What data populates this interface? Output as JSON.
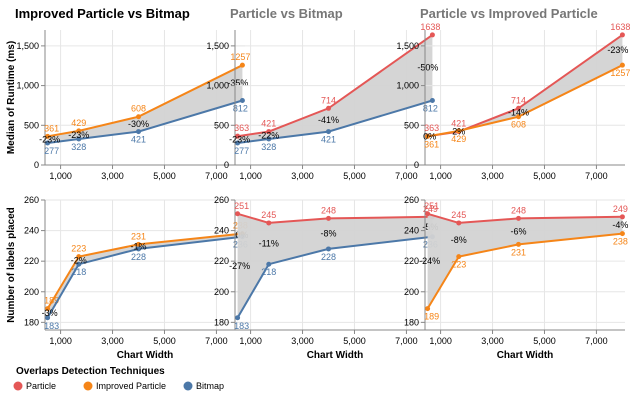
{
  "colors": {
    "Particle": "#e45756",
    "Improved Particle": "#f58518",
    "Bitmap": "#4c78a8",
    "gap_fill": "#d3d3d3",
    "axis": "#888888",
    "grid": "#e6e6e6"
  },
  "legend": {
    "title": "Overlaps Detection Techniques",
    "items": [
      "Particle",
      "Improved Particle",
      "Bitmap"
    ]
  },
  "chart_data": [
    {
      "type": "line",
      "title": "Improved Particle vs Bitmap",
      "ylabel": "Median of Runtime (ms)",
      "xlabel": "",
      "x": [
        500,
        1700,
        4000,
        8000
      ],
      "xlim": [
        400,
        8100
      ],
      "ylim": [
        0,
        1700
      ],
      "xticks": [
        "1,000",
        "3,000",
        "5,000",
        "7,000"
      ],
      "yticks": [
        "0",
        "500",
        "1,000",
        "1,500"
      ],
      "series": [
        {
          "name": "Improved Particle",
          "values": [
            361,
            429,
            608,
            1257
          ],
          "labels": [
            "361",
            "429",
            "608",
            "1257"
          ]
        },
        {
          "name": "Bitmap",
          "values": [
            277,
            328,
            421,
            812
          ],
          "labels": [
            "277",
            "328",
            "421",
            "812"
          ]
        }
      ],
      "gap": [
        "-23%",
        "-23%",
        "-30%",
        "-35%"
      ]
    },
    {
      "type": "line",
      "title": "Particle vs Bitmap",
      "ylabel": "",
      "xlabel": "",
      "x": [
        500,
        1700,
        4000,
        8000
      ],
      "xlim": [
        400,
        8100
      ],
      "ylim": [
        0,
        1700
      ],
      "xticks": [
        "1,000",
        "3,000",
        "5,000",
        "7,000"
      ],
      "yticks": [
        "0",
        "500",
        "1,000",
        "1,500"
      ],
      "series": [
        {
          "name": "Particle",
          "values": [
            363,
            421,
            714,
            1638
          ],
          "labels": [
            "363",
            "421",
            "714",
            "1638"
          ]
        },
        {
          "name": "Bitmap",
          "values": [
            277,
            328,
            421,
            812
          ],
          "labels": [
            "277",
            "328",
            "421",
            "812"
          ]
        }
      ],
      "gap": [
        "-23%",
        "-22%",
        "-41%",
        "-50%"
      ]
    },
    {
      "type": "line",
      "title": "Particle vs Improved Particle",
      "ylabel": "",
      "xlabel": "",
      "x": [
        500,
        1700,
        4000,
        8000
      ],
      "xlim": [
        400,
        8100
      ],
      "ylim": [
        0,
        1700
      ],
      "xticks": [
        "1,000",
        "3,000",
        "5,000",
        "7,000"
      ],
      "yticks": [
        "0",
        "500",
        "1,000",
        "1,500"
      ],
      "series": [
        {
          "name": "Particle",
          "values": [
            363,
            421,
            714,
            1638
          ],
          "labels": [
            "363",
            "421",
            "714",
            "1638"
          ]
        },
        {
          "name": "Improved Particle",
          "values": [
            361,
            429,
            608,
            1257
          ],
          "labels": [
            "361",
            "429",
            "608",
            "1257"
          ]
        }
      ],
      "gap": [
        "0%",
        "2%",
        "-14%",
        "-23%"
      ]
    },
    {
      "type": "line",
      "title": "",
      "ylabel": "Number of labels placed",
      "xlabel": "Chart Width",
      "x": [
        500,
        1700,
        4000,
        8000
      ],
      "xlim": [
        400,
        8100
      ],
      "ylim": [
        175,
        260
      ],
      "xticks": [
        "1,000",
        "3,000",
        "5,000",
        "7,000"
      ],
      "yticks": [
        "180",
        "200",
        "220",
        "240",
        "260"
      ],
      "series": [
        {
          "name": "Improved Particle",
          "values": [
            189,
            223,
            231,
            238
          ],
          "labels": [
            "189",
            "223",
            "231",
            "238"
          ]
        },
        {
          "name": "Bitmap",
          "values": [
            183,
            218,
            228,
            236
          ],
          "labels": [
            "183",
            "218",
            "228",
            "236"
          ]
        }
      ],
      "gap": [
        "-3%",
        "-2%",
        "-1%",
        "0%"
      ]
    },
    {
      "type": "line",
      "title": "",
      "ylabel": "",
      "xlabel": "Chart Width",
      "x": [
        500,
        1700,
        4000,
        8000
      ],
      "xlim": [
        400,
        8100
      ],
      "ylim": [
        175,
        260
      ],
      "xticks": [
        "1,000",
        "3,000",
        "5,000",
        "7,000"
      ],
      "yticks": [
        "180",
        "200",
        "220",
        "240",
        "260"
      ],
      "series": [
        {
          "name": "Particle",
          "values": [
            251,
            245,
            248,
            249
          ],
          "labels": [
            "251",
            "245",
            "248",
            "249"
          ]
        },
        {
          "name": "Bitmap",
          "values": [
            183,
            218,
            228,
            236
          ],
          "labels": [
            "183",
            "218",
            "228",
            "236"
          ]
        }
      ],
      "gap": [
        "-27%",
        "-11%",
        "-8%",
        "-5%"
      ]
    },
    {
      "type": "line",
      "title": "",
      "ylabel": "",
      "xlabel": "Chart Width",
      "x": [
        500,
        1700,
        4000,
        8000
      ],
      "xlim": [
        400,
        8100
      ],
      "ylim": [
        175,
        260
      ],
      "xticks": [
        "1,000",
        "3,000",
        "5,000",
        "7,000"
      ],
      "yticks": [
        "180",
        "200",
        "220",
        "240",
        "260"
      ],
      "series": [
        {
          "name": "Particle",
          "values": [
            251,
            245,
            248,
            249
          ],
          "labels": [
            "251",
            "245",
            "248",
            "249"
          ]
        },
        {
          "name": "Improved Particle",
          "values": [
            189,
            223,
            231,
            238
          ],
          "labels": [
            "189",
            "223",
            "231",
            "238"
          ]
        }
      ],
      "gap": [
        "-24%",
        "-8%",
        "-6%",
        "-4%"
      ]
    }
  ]
}
